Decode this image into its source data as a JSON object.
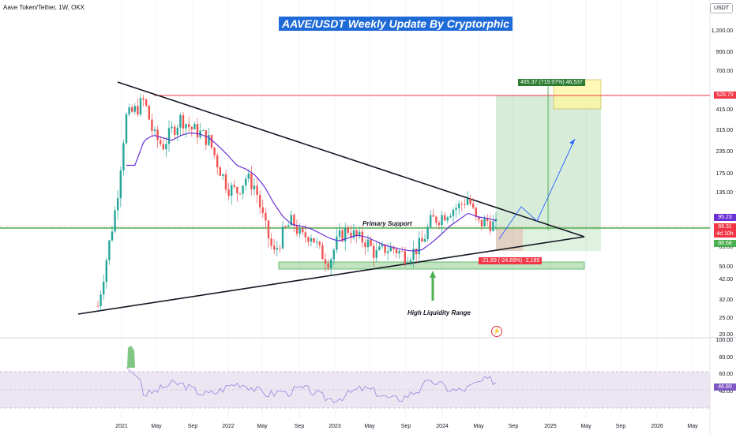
{
  "header": {
    "symbol_line": "Aave Token/Tether, 1W, OKX"
  },
  "title": "AAVE/USDT Weekly Update By Cryptorphic",
  "currency_badge": "USDT",
  "annotations": {
    "primary_support": "Primary Support",
    "high_liquidity": "High Liquidity Range",
    "long_position": "465.37 (719.97%) 46,537",
    "short_position": "-21.89 (-24.89%) -2,189"
  },
  "price_axis": {
    "scale": "log",
    "ticks": [
      "1,200.00",
      "900.00",
      "700.00",
      "415.00",
      "315.00",
      "235.00",
      "175.00",
      "135.00",
      "65.00",
      "50.00",
      "42.00",
      "32.00",
      "25.00",
      "20.00"
    ],
    "tick_values": [
      1200,
      900,
      700,
      415,
      315,
      235,
      175,
      135,
      65,
      50,
      42,
      32,
      25,
      20
    ]
  },
  "price_labels": [
    {
      "text": "528.79",
      "color": "#f23645"
    },
    {
      "text": "95.23",
      "color": "#6b2fd6"
    },
    {
      "text": "88.31",
      "color": "#f23645"
    },
    {
      "text": "4d 10h",
      "color": "#f23645"
    },
    {
      "text": "86.68",
      "color": "#4caf50"
    }
  ],
  "rsi_axis": {
    "ticks": [
      "100.00",
      "80.00",
      "60.00",
      "40.00"
    ],
    "tick_values": [
      100,
      80,
      60,
      40
    ],
    "current": "46.89"
  },
  "time_axis": [
    "2021",
    "May",
    "Sep",
    "2022",
    "May",
    "Sep",
    "2023",
    "May",
    "Sep",
    "2024",
    "May",
    "Sep",
    "2025",
    "May",
    "Sep",
    "2026",
    "May"
  ],
  "colors": {
    "up": "#26a69a",
    "down": "#ef5350",
    "ma": "#6b2fd6",
    "resistance": "#f23645",
    "support": "#4caf50",
    "target_zone": "#fff59d",
    "rsi": "#a48de0",
    "rsi_band": "#ece6f2",
    "projection": "#2962ff"
  },
  "chart_data": {
    "type": "candlestick",
    "title": "AAVE/USDT Weekly Update By Cryptorphic",
    "y_scale": "log",
    "ylim": [
      20,
      1500
    ],
    "series": [
      {
        "name": "AAVE/USDT",
        "x": [
          "2020-11",
          "2020-12",
          "2021-01",
          "2021-02",
          "2021-03",
          "2021-04",
          "2021-05",
          "2021-06",
          "2021-07",
          "2021-08",
          "2021-09",
          "2021-10",
          "2021-11",
          "2021-12",
          "2022-01",
          "2022-02",
          "2022-03",
          "2022-04",
          "2022-05",
          "2022-06",
          "2022-07",
          "2022-08",
          "2022-09",
          "2022-10",
          "2022-11",
          "2022-12",
          "2023-01",
          "2023-02",
          "2023-03",
          "2023-04",
          "2023-05",
          "2023-06",
          "2023-07",
          "2023-08",
          "2023-09",
          "2023-10",
          "2023-11",
          "2023-12",
          "2024-01",
          "2024-02",
          "2024-03",
          "2024-04",
          "2024-05",
          "2024-06"
        ],
        "close": [
          30,
          60,
          120,
          380,
          420,
          480,
          300,
          260,
          320,
          380,
          330,
          310,
          280,
          200,
          150,
          140,
          170,
          150,
          90,
          60,
          80,
          95,
          75,
          80,
          62,
          55,
          75,
          85,
          75,
          72,
          60,
          65,
          65,
          60,
          62,
          70,
          95,
          100,
          110,
          115,
          130,
          90,
          95,
          88
        ]
      },
      {
        "name": "Moving average",
        "values": [
          null,
          null,
          null,
          null,
          200,
          280,
          300,
          290,
          280,
          300,
          310,
          305,
          290,
          260,
          230,
          200,
          190,
          175,
          150,
          120,
          100,
          90,
          88,
          85,
          80,
          75,
          72,
          75,
          78,
          76,
          72,
          68,
          66,
          64,
          63,
          64,
          70,
          78,
          88,
          96,
          105,
          100,
          98,
          95
        ]
      }
    ],
    "levels": {
      "resistance": 528.79,
      "primary_support": 86.68,
      "liquidity_range": [
        50,
        55
      ]
    },
    "rsi": {
      "current": 46.89,
      "band": [
        30,
        70
      ]
    },
    "x_ticks": [
      "2021",
      "May",
      "Sep",
      "2022",
      "May",
      "Sep",
      "2023",
      "May",
      "Sep",
      "2024",
      "May",
      "Sep",
      "2025",
      "May",
      "Sep",
      "2026",
      "May"
    ]
  }
}
